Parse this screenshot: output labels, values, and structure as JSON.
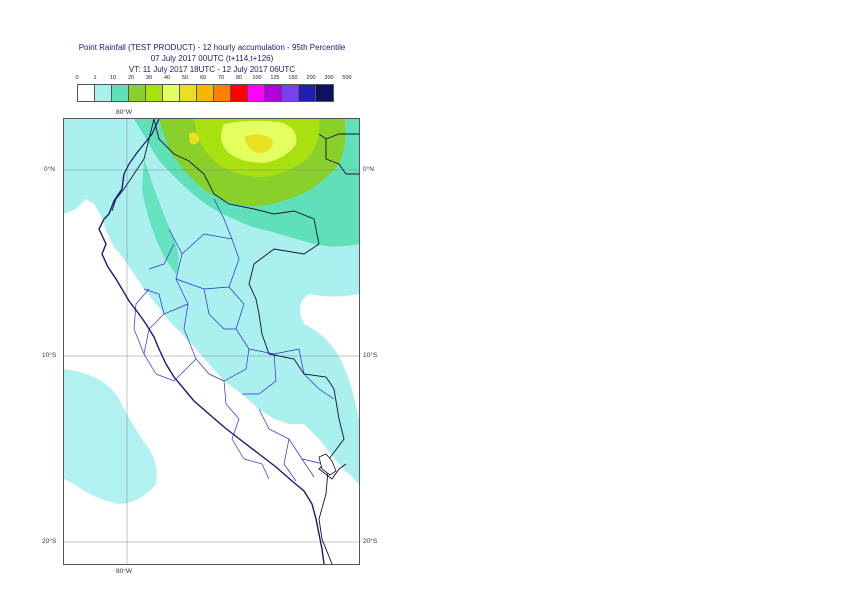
{
  "title": {
    "line1": "Point Rainfall (TEST PRODUCT) - 12 hourly accumulation - 95th Percentile",
    "line2": "07 July 2017 00UTC (t+114,t+126)",
    "line3": "VT: 11 July 2017 18UTC - 12 July 2017 06UTC"
  },
  "legend": {
    "thresholds": [
      "0",
      "1",
      "10",
      "20",
      "30",
      "40",
      "50",
      "60",
      "70",
      "80",
      "100",
      "125",
      "150",
      "200",
      "300",
      "500"
    ],
    "colors": [
      "#ffffff",
      "#a9f0ef",
      "#5fe0b8",
      "#8ad02a",
      "#a8e010",
      "#e4ff60",
      "#e8e020",
      "#f4b800",
      "#ff8000",
      "#ff0000",
      "#ff00ff",
      "#b000e0",
      "#7a40f0",
      "#2020b0",
      "#101060"
    ]
  },
  "axes": {
    "lon_top": "80°W",
    "lon_bottom": "80°W",
    "lat_labels": [
      "0°N",
      "10°S",
      "20°S"
    ]
  },
  "map": {
    "region": "Peru",
    "lat_range": [
      -22.5,
      2.7
    ],
    "lon_range": [
      -83.5,
      -66.7
    ],
    "colors": {
      "coast": "#1a1a6e",
      "admin": "#2b2bd6",
      "grid": "#888888",
      "rain_light": "#a9f0ef",
      "rain_mod": "#5fe0b8",
      "rain_heavy": "#8ad02a",
      "rain_very": "#a8e010",
      "rain_yellow": "#e4ff60",
      "rain_gold": "#e8e020"
    }
  }
}
